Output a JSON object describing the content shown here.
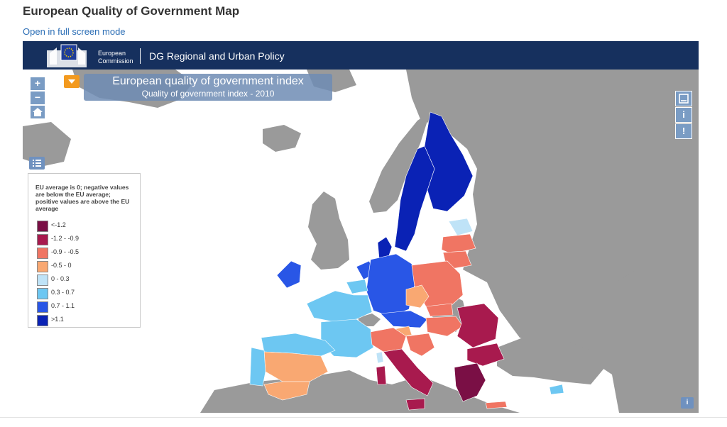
{
  "page": {
    "title": "European Quality of Government Map",
    "fullscreen_link": "Open in full screen mode"
  },
  "header": {
    "org_line1": "European",
    "org_line2": "Commission",
    "dg_name": "DG Regional and Urban Policy"
  },
  "map": {
    "title": "European quality of government index",
    "subtitle": "Quality of government index - 2010",
    "colors": {
      "sea": "#ffffff",
      "non_eu": "#9a9a9a"
    }
  },
  "controls": {
    "zoom_in": "+",
    "zoom_out": "−",
    "side_info": "i",
    "side_alert": "!",
    "corner_info": "i"
  },
  "legend": {
    "note": "EU average is 0; negative values are below the EU average; positive values are above the EU average",
    "items": [
      {
        "label": "<-1.2",
        "color": "#7a0f45"
      },
      {
        "label": "-1.2 - -0.9",
        "color": "#a81a4e"
      },
      {
        "label": "-0.9 - -0.5",
        "color": "#f07563"
      },
      {
        "label": "-0.5 - 0",
        "color": "#f9a872"
      },
      {
        "label": "0 - 0.3",
        "color": "#bfe3f7"
      },
      {
        "label": "0.3 - 0.7",
        "color": "#6dc7f2"
      },
      {
        "label": "0.7 - 1.1",
        "color": "#2956e6"
      },
      {
        "label": ">1.1",
        "color": "#0a22b5"
      }
    ]
  }
}
